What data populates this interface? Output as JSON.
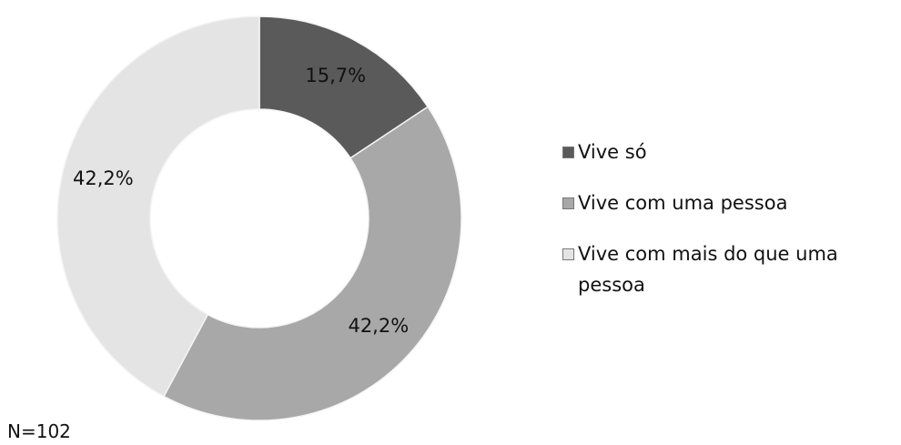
{
  "chart_data": {
    "type": "donut",
    "categories": [
      "Vive só",
      "Vive com uma pessoa",
      "Vive com mais do que uma pessoa"
    ],
    "values": [
      15.7,
      42.2,
      42.2
    ],
    "value_labels": [
      "15,7%",
      "42,2%",
      "42,2%"
    ],
    "colors": [
      "#5a5a5a",
      "#a8a8a8",
      "#e4e4e4"
    ],
    "legend": "right",
    "annotation": "N=102"
  }
}
